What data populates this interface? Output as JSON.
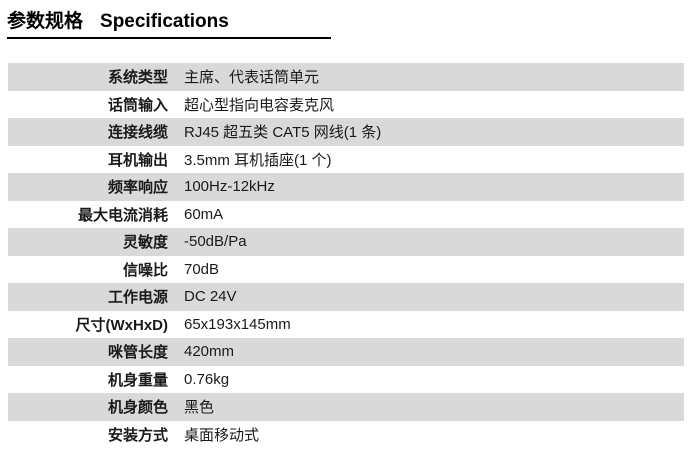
{
  "header": {
    "title_zh": "参数规格",
    "title_en": "Specifications"
  },
  "table": {
    "rows": [
      {
        "label": "系统类型",
        "value": "主席、代表话筒单元"
      },
      {
        "label": "话筒输入",
        "value": "超心型指向电容麦克风"
      },
      {
        "label": "连接线缆",
        "value": "RJ45 超五类 CAT5 网线(1 条)"
      },
      {
        "label": "耳机输出",
        "value": "3.5mm 耳机插座(1 个)"
      },
      {
        "label": "频率响应",
        "value": "100Hz-12kHz"
      },
      {
        "label": "最大电流消耗",
        "value": "60mA"
      },
      {
        "label": "灵敏度",
        "value": "-50dB/Pa"
      },
      {
        "label": "信噪比",
        "value": "70dB"
      },
      {
        "label": "工作电源",
        "value": "DC 24V"
      },
      {
        "label": "尺寸(WxHxD)",
        "value": "65x193x145mm"
      },
      {
        "label": "咪管长度",
        "value": "420mm"
      },
      {
        "label": "机身重量",
        "value": "0.76kg"
      },
      {
        "label": "机身颜色",
        "value": "黑色"
      },
      {
        "label": "安装方式",
        "value": "桌面移动式"
      }
    ]
  },
  "colors": {
    "stripe": "#d9d9d9",
    "text": "#1a1a1a",
    "title": "#000000",
    "underline": "#000000"
  }
}
